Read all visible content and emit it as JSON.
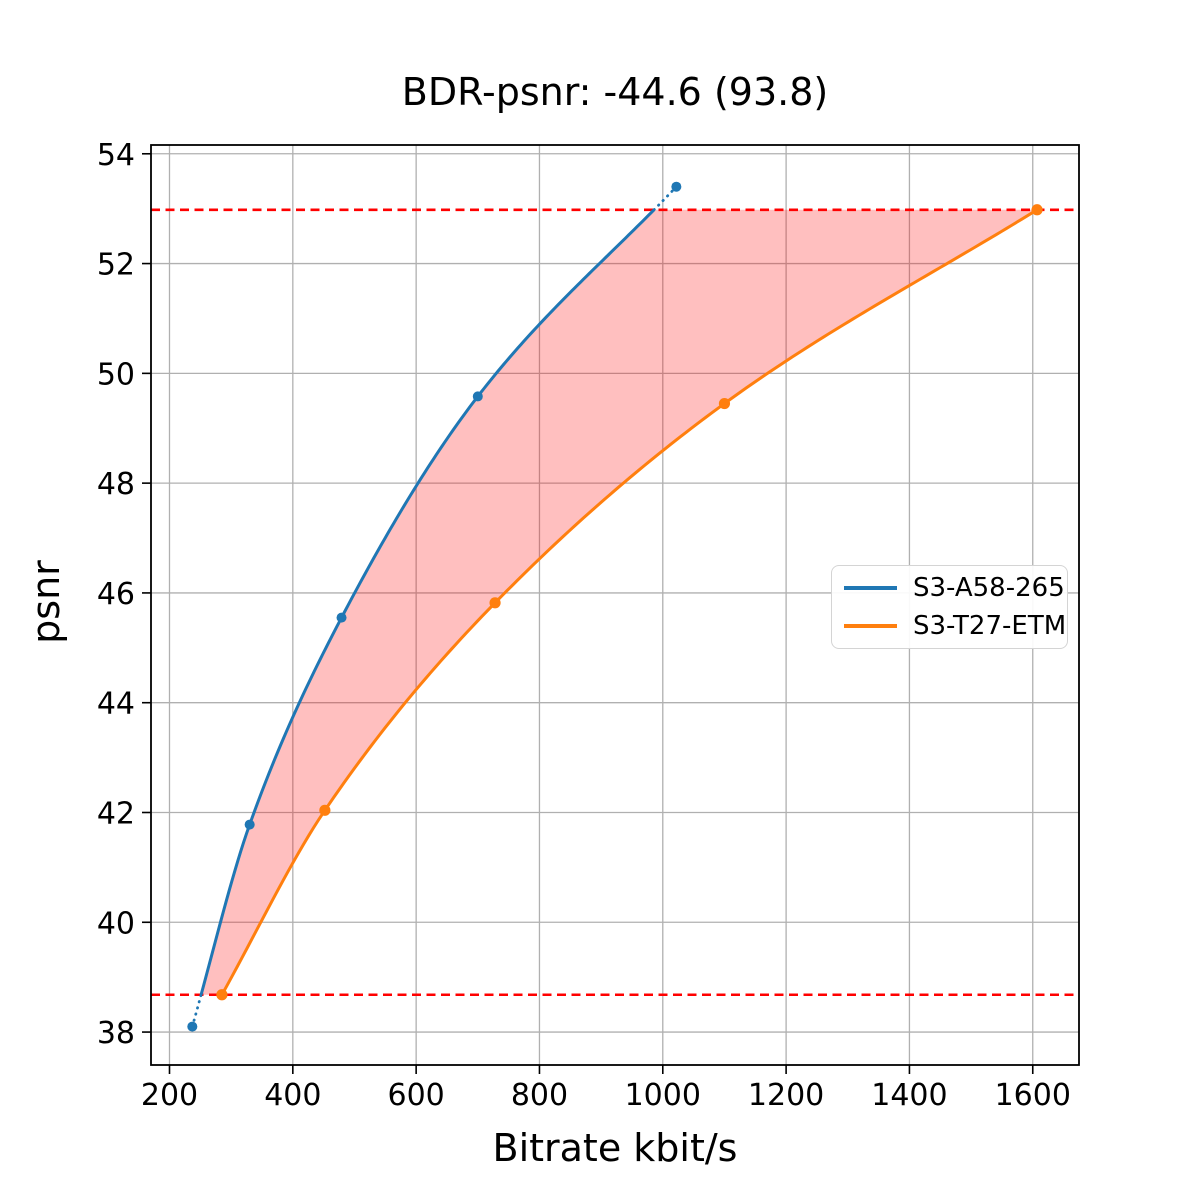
{
  "figure": {
    "title": "BDR-psnr: -44.6 (93.8)",
    "xlabel": "Bitrate kbit/s",
    "ylabel": "psnr"
  },
  "legend": {
    "items": [
      {
        "label": "S3-A58-265",
        "color": "#1f77b4"
      },
      {
        "label": "S3-T27-ETM",
        "color": "#ff7f0e"
      }
    ]
  },
  "chart_data": {
    "type": "line",
    "title": "BDR-psnr: -44.6 (93.8)",
    "bdr_psnr": -44.6,
    "bdr_overlap_pct": 93.8,
    "xlabel": "Bitrate kbit/s",
    "ylabel": "psnr",
    "xlim": [
      170,
      1675
    ],
    "ylim": [
      37.4,
      54.16
    ],
    "x_ticks": [
      200,
      400,
      600,
      800,
      1000,
      1200,
      1400,
      1600
    ],
    "y_ticks": [
      38,
      40,
      42,
      44,
      46,
      48,
      50,
      52,
      54
    ],
    "grid": true,
    "grid_color": "#b0b0b0",
    "legend_position": "center right",
    "series": [
      {
        "name": "S3-A58-265",
        "color": "#1f77b4",
        "marker": "circle",
        "line_style": "solid-with-dotted-extensions",
        "points": [
          [
            237,
            38.1
          ],
          [
            330,
            41.78
          ],
          [
            479,
            45.55
          ],
          [
            700,
            49.58
          ],
          [
            1022,
            53.4
          ]
        ]
      },
      {
        "name": "S3-T27-ETM",
        "color": "#ff7f0e",
        "marker": "circle",
        "line_style": "solid",
        "points": [
          [
            285,
            38.68
          ],
          [
            452,
            42.04
          ],
          [
            728,
            45.82
          ],
          [
            1100,
            49.45
          ],
          [
            1607,
            52.98
          ]
        ]
      }
    ],
    "bd_shading": {
      "bound_low_psnr": 38.68,
      "bound_high_psnr": 52.98,
      "boundary_line_color": "#ff0000",
      "boundary_line_style": "dashed",
      "fill_color": "rgba(255,0,0,0.25)"
    }
  }
}
